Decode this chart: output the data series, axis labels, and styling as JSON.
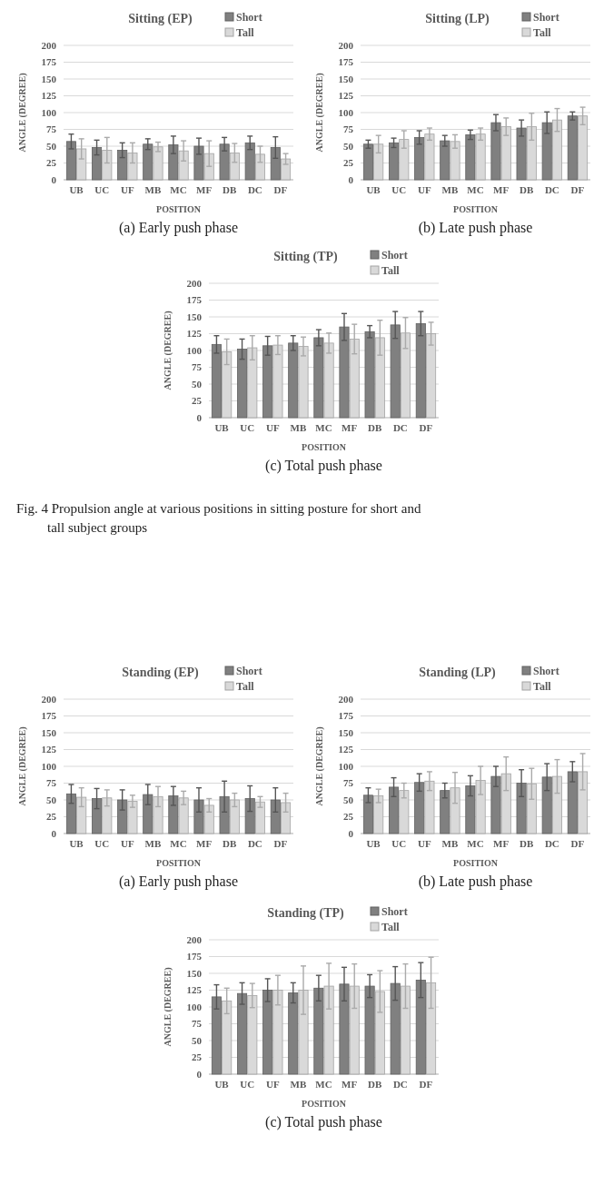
{
  "chart_data": [
    {
      "type": "bar",
      "title": "Sitting  (EP)",
      "xlabel": "POSITION",
      "ylabel": "ANGLE (DEGREE)",
      "categories": [
        "UB",
        "UC",
        "UF",
        "MB",
        "MC",
        "MF",
        "DB",
        "DC",
        "DF"
      ],
      "series": [
        {
          "name": "Short",
          "color": "#808080",
          "values": [
            57,
            48,
            44,
            53,
            52,
            50,
            53,
            55,
            48
          ],
          "errors": [
            11,
            11,
            11,
            8,
            13,
            12,
            10,
            10,
            16
          ]
        },
        {
          "name": "Tall",
          "color": "#d9d9d9",
          "values": [
            46,
            44,
            40,
            49,
            43,
            39,
            40,
            38,
            31
          ],
          "errors": [
            15,
            19,
            15,
            7,
            15,
            19,
            14,
            12,
            8
          ]
        }
      ],
      "ylim": [
        0,
        200
      ],
      "yticks": [
        0,
        25,
        50,
        75,
        100,
        125,
        150,
        175,
        200
      ],
      "grid": "y",
      "legend": "top right",
      "annotations": [
        "(a) Early push phase"
      ]
    },
    {
      "type": "bar",
      "title": "Sitting  (LP)",
      "xlabel": "POSITION",
      "ylabel": "ANGLE (DEGREE)",
      "categories": [
        "UB",
        "UC",
        "UF",
        "MB",
        "MC",
        "MF",
        "DB",
        "DC",
        "DF"
      ],
      "series": [
        {
          "name": "Short",
          "color": "#808080",
          "values": [
            53,
            55,
            63,
            58,
            67,
            85,
            77,
            85,
            95
          ],
          "errors": [
            6,
            7,
            10,
            8,
            7,
            12,
            12,
            16,
            6
          ]
        },
        {
          "name": "Tall",
          "color": "#d9d9d9",
          "values": [
            53,
            60,
            68,
            57,
            68,
            79,
            79,
            89,
            95
          ],
          "errors": [
            13,
            13,
            9,
            10,
            9,
            13,
            20,
            17,
            13
          ]
        }
      ],
      "ylim": [
        0,
        200
      ],
      "yticks": [
        0,
        25,
        50,
        75,
        100,
        125,
        150,
        175,
        200
      ],
      "grid": "y",
      "legend": "top right",
      "annotations": [
        "(b) Late push phase"
      ]
    },
    {
      "type": "bar",
      "title": "Sitting  (TP)",
      "xlabel": "POSITION",
      "ylabel": "ANGLE (DEGREE)",
      "categories": [
        "UB",
        "UC",
        "UF",
        "MB",
        "MC",
        "MF",
        "DB",
        "DC",
        "DF"
      ],
      "series": [
        {
          "name": "Short",
          "color": "#808080",
          "values": [
            109,
            102,
            107,
            111,
            119,
            135,
            128,
            138,
            140
          ],
          "errors": [
            13,
            15,
            14,
            11,
            12,
            20,
            9,
            20,
            18
          ]
        },
        {
          "name": "Tall",
          "color": "#d9d9d9",
          "values": [
            98,
            104,
            108,
            106,
            111,
            117,
            119,
            126,
            125
          ],
          "errors": [
            19,
            18,
            14,
            14,
            15,
            22,
            26,
            23,
            17
          ]
        }
      ],
      "ylim": [
        0,
        200
      ],
      "yticks": [
        0,
        25,
        50,
        75,
        100,
        125,
        150,
        175,
        200
      ],
      "grid": "y",
      "legend": "top right",
      "annotations": [
        "(c) Total push phase",
        "Fig. 4  Propulsion angle at various positions in sitting posture for short and tall subject groups"
      ]
    },
    {
      "type": "bar",
      "title": "Standing  (EP)",
      "xlabel": "POSITION",
      "ylabel": "ANGLE (DEGREE)",
      "categories": [
        "UB",
        "UC",
        "UF",
        "MB",
        "MC",
        "MF",
        "DB",
        "DC",
        "DF"
      ],
      "series": [
        {
          "name": "Short",
          "color": "#808080",
          "values": [
            59,
            52,
            50,
            58,
            56,
            50,
            55,
            52,
            50
          ],
          "errors": [
            14,
            15,
            15,
            15,
            14,
            18,
            23,
            19,
            18
          ]
        },
        {
          "name": "Tall",
          "color": "#d9d9d9",
          "values": [
            54,
            53,
            48,
            55,
            53,
            42,
            50,
            47,
            46
          ],
          "errors": [
            14,
            12,
            9,
            15,
            10,
            10,
            10,
            8,
            14
          ]
        }
      ],
      "ylim": [
        0,
        200
      ],
      "yticks": [
        0,
        25,
        50,
        75,
        100,
        125,
        150,
        175,
        200
      ],
      "grid": "y",
      "legend": "top right",
      "annotations": [
        "(a) Early push phase"
      ]
    },
    {
      "type": "bar",
      "title": "Standing  (LP)",
      "xlabel": "POSITION",
      "ylabel": "ANGLE (DEGREE)",
      "categories": [
        "UB",
        "UC",
        "UF",
        "MB",
        "MC",
        "MF",
        "DB",
        "DC",
        "DF"
      ],
      "series": [
        {
          "name": "Short",
          "color": "#808080",
          "values": [
            57,
            69,
            76,
            64,
            71,
            85,
            75,
            84,
            92
          ],
          "errors": [
            11,
            14,
            13,
            11,
            15,
            15,
            20,
            20,
            15
          ]
        },
        {
          "name": "Tall",
          "color": "#d9d9d9",
          "values": [
            56,
            64,
            78,
            68,
            79,
            89,
            74,
            85,
            92
          ],
          "errors": [
            10,
            11,
            14,
            23,
            21,
            25,
            23,
            25,
            27
          ]
        }
      ],
      "ylim": [
        0,
        200
      ],
      "yticks": [
        0,
        25,
        50,
        75,
        100,
        125,
        150,
        175,
        200
      ],
      "grid": "y",
      "legend": "top right",
      "annotations": [
        "(b) Late push phase"
      ]
    },
    {
      "type": "bar",
      "title": "Standing  (TP)",
      "xlabel": "POSITION",
      "ylabel": "ANGLE (DEGREE)",
      "categories": [
        "UB",
        "UC",
        "UF",
        "MB",
        "MC",
        "MF",
        "DB",
        "DC",
        "DF"
      ],
      "series": [
        {
          "name": "Short",
          "color": "#808080",
          "values": [
            115,
            120,
            125,
            121,
            128,
            134,
            131,
            135,
            140
          ],
          "errors": [
            18,
            16,
            17,
            15,
            19,
            25,
            17,
            25,
            26
          ]
        },
        {
          "name": "Tall",
          "color": "#d9d9d9",
          "values": [
            109,
            117,
            125,
            125,
            131,
            131,
            123,
            131,
            136
          ],
          "errors": [
            19,
            18,
            22,
            36,
            34,
            33,
            31,
            33,
            38
          ]
        }
      ],
      "ylim": [
        0,
        200
      ],
      "yticks": [
        0,
        25,
        50,
        75,
        100,
        125,
        150,
        175,
        200
      ],
      "grid": "y",
      "legend": "top right",
      "annotations": [
        "(c) Total push phase"
      ]
    }
  ]
}
